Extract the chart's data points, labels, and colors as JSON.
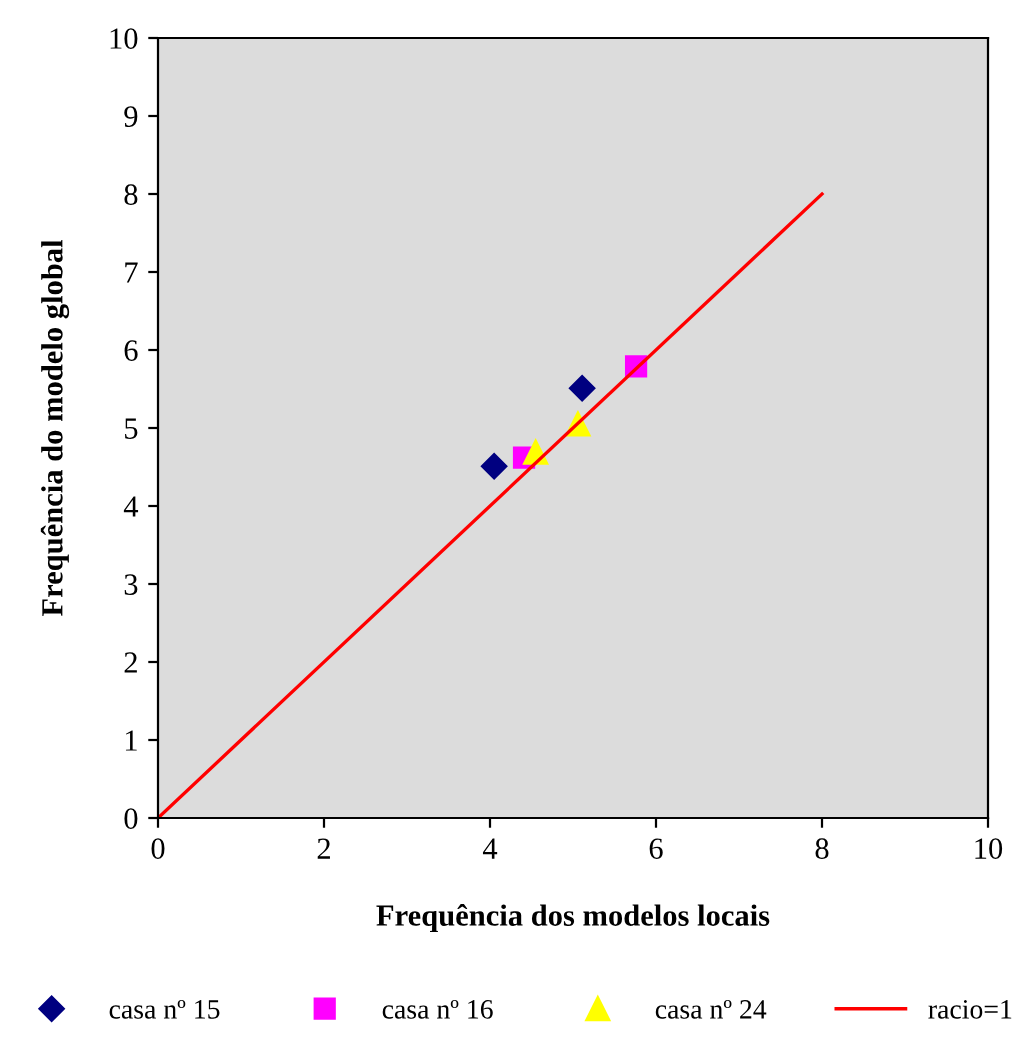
{
  "chart_data": {
    "type": "scatter",
    "xlabel": "Frequência dos modelos locais",
    "ylabel": "Frequência do modelo global",
    "xlim": [
      0,
      10
    ],
    "ylim": [
      0,
      10
    ],
    "xticks": [
      0,
      2,
      4,
      6,
      8,
      10
    ],
    "yticks": [
      0,
      1,
      2,
      3,
      4,
      5,
      6,
      7,
      8,
      9,
      10
    ],
    "grid": false,
    "legend": "bottom",
    "series": [
      {
        "name": "casa nº 15",
        "color": "#000080",
        "marker": "diamond",
        "x": [
          4.05,
          5.11
        ],
        "values": [
          4.51,
          5.51
        ]
      },
      {
        "name": "casa nº 16",
        "color": "#ff00ff",
        "marker": "square",
        "x": [
          4.41,
          5.76
        ],
        "values": [
          4.62,
          5.79
        ]
      },
      {
        "name": "casa nº 24",
        "color": "#ffff00",
        "marker": "triangle",
        "x": [
          4.55,
          5.06
        ],
        "values": [
          4.69,
          5.05
        ]
      },
      {
        "name": "racio=1",
        "type": "line",
        "color": "#ff0000",
        "marker": "none",
        "line_style": "solid",
        "x": [
          0,
          8
        ],
        "values": [
          0,
          8
        ]
      }
    ]
  }
}
